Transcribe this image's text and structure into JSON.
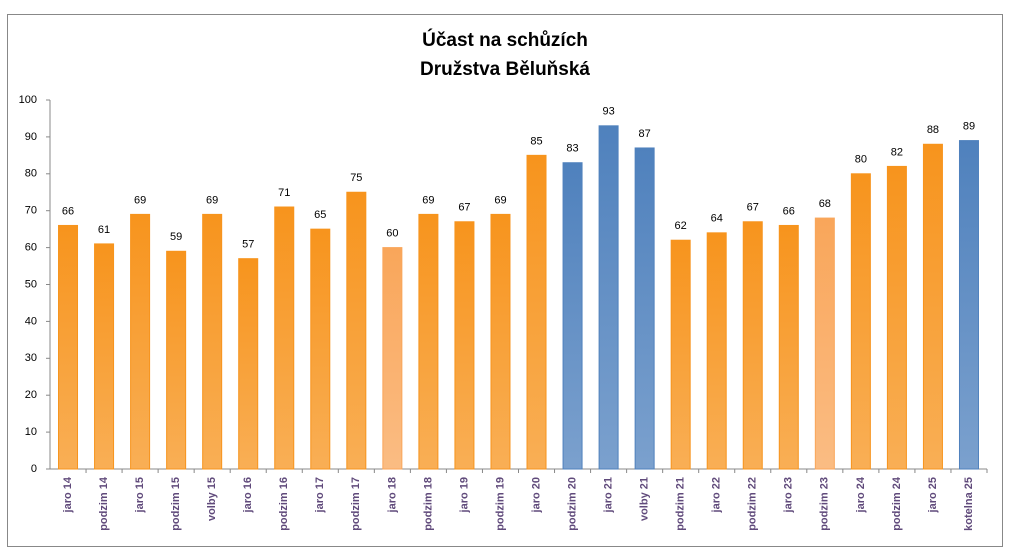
{
  "chart_data": {
    "type": "bar",
    "title": [
      "Účast na schůzích",
      "Družstva Běluňská"
    ],
    "categories": [
      "jaro 14",
      "podzim 14",
      "jaro 15",
      "podzim 15",
      "volby 15",
      "jaro 16",
      "podzim 16",
      "jaro 17",
      "podzim 17",
      "jaro 18",
      "podzim 18",
      "jaro 19",
      "podzim 19",
      "jaro 20",
      "podzim 20",
      "jaro 21",
      "volby 21",
      "podzim 21",
      "jaro 22",
      "podzim 22",
      "jaro 23",
      "podzim 23",
      "jaro 24",
      "podzim 24",
      "jaro 25",
      "kotelna 25"
    ],
    "values": [
      66,
      61,
      69,
      59,
      69,
      57,
      71,
      65,
      75,
      60,
      69,
      67,
      69,
      85,
      83,
      93,
      87,
      62,
      64,
      67,
      66,
      68,
      80,
      82,
      88,
      89
    ],
    "colors": [
      "#f7941d",
      "#f7941d",
      "#f7941d",
      "#f7941d",
      "#f7941d",
      "#f7941d",
      "#f7941d",
      "#f7941d",
      "#f7941d",
      "#f9a65a",
      "#f7941d",
      "#f7941d",
      "#f7941d",
      "#f7941d",
      "#4f81bd",
      "#4f81bd",
      "#4f81bd",
      "#f7941d",
      "#f7941d",
      "#f7941d",
      "#f7941d",
      "#f9a65a",
      "#f7941d",
      "#f7941d",
      "#f7941d",
      "#4f81bd"
    ],
    "ylim": [
      0,
      100
    ],
    "yticks": [
      0,
      10,
      20,
      30,
      40,
      50,
      60,
      70,
      80,
      90,
      100
    ],
    "grid": false
  }
}
